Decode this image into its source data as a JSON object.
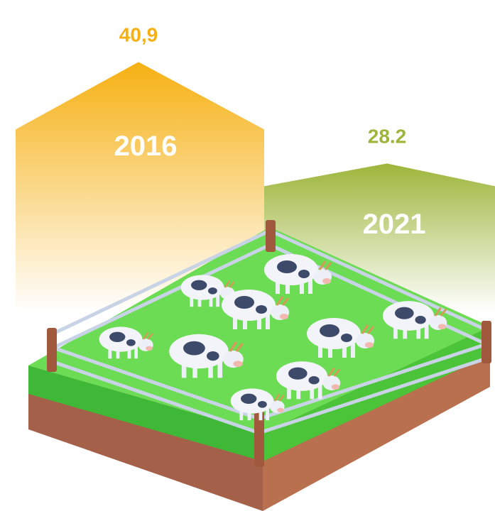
{
  "chart_data": {
    "type": "bar",
    "categories": [
      "2016",
      "2021"
    ],
    "values": [
      40.9,
      28.2
    ],
    "value_labels": [
      "40,9",
      "28.2"
    ],
    "colors": [
      "#f6b012",
      "#9db53a"
    ]
  }
}
